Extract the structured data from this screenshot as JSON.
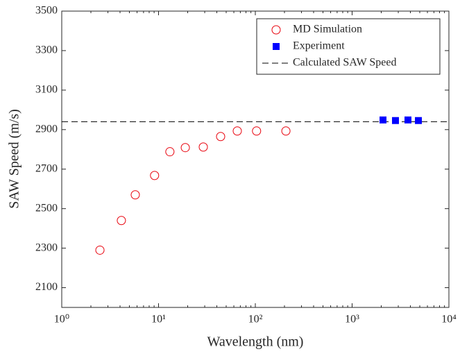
{
  "chart_data": {
    "type": "scatter",
    "xlabel": "Wavelength (nm)",
    "ylabel": "SAW Speed (m/s)",
    "xscale": "log",
    "xlim": [
      1,
      10000
    ],
    "xticks": [
      {
        "value": 1,
        "label": "10⁰"
      },
      {
        "value": 10,
        "label": "10¹"
      },
      {
        "value": 100,
        "label": "10²"
      },
      {
        "value": 1000,
        "label": "10³"
      },
      {
        "value": 10000,
        "label": "10⁴"
      }
    ],
    "ylim": [
      2000,
      3500
    ],
    "yticks": [
      2100,
      2300,
      2500,
      2700,
      2900,
      3100,
      3300,
      3500
    ],
    "legend": "upper right",
    "series": [
      {
        "name": "MD Simulation",
        "color": "#e8000b",
        "marker": "open-circle",
        "x": [
          2.48,
          4.13,
          5.75,
          9.1,
          13.1,
          18.9,
          29,
          43.8,
          65.1,
          103,
          207
        ],
        "values": [
          2290,
          2440,
          2570,
          2668,
          2788,
          2809,
          2812,
          2865,
          2893,
          2893,
          2893
        ]
      },
      {
        "name": "Experiment",
        "color": "#0000ff",
        "marker": "filled-square",
        "x": [
          2085,
          2805,
          3776,
          4840
        ],
        "values": [
          2949,
          2946,
          2949,
          2946
        ]
      }
    ],
    "reference_line": {
      "name": "Calculated SAW Speed",
      "value": 2940,
      "color": "#000000"
    }
  }
}
